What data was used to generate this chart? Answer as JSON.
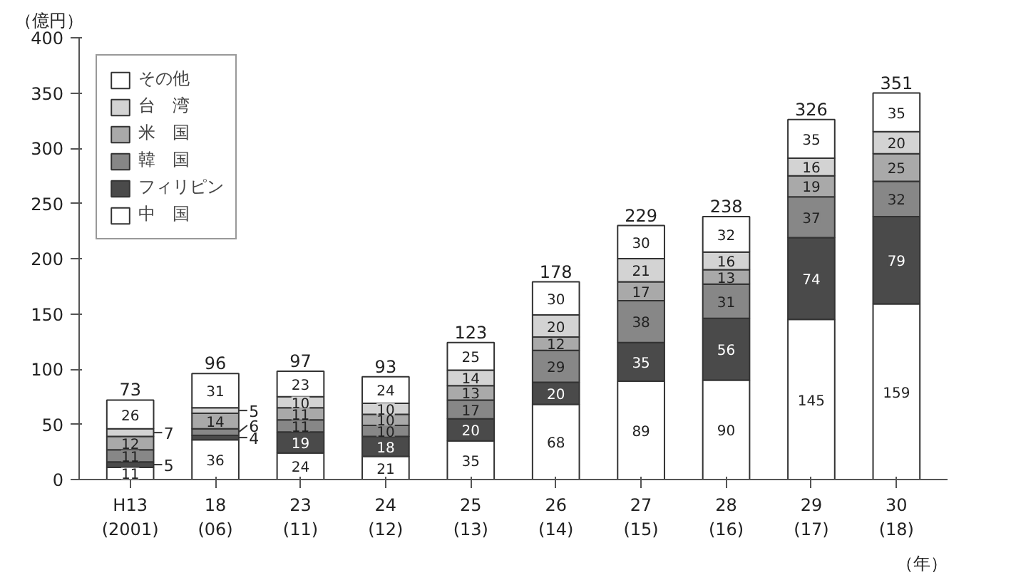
{
  "chart_data": {
    "type": "bar",
    "stacked": true,
    "ylabel": "（億円）",
    "xlabel": "（年）",
    "categories": [
      "H13\n(2001)",
      "18\n(06)",
      "23\n(11)",
      "24\n(12)",
      "25\n(13)",
      "26\n(14)",
      "27\n(15)",
      "28\n(16)",
      "29\n(17)",
      "30\n(18)"
    ],
    "series": [
      {
        "name": "中　国",
        "color": "#ffffff",
        "values": [
          11,
          36,
          24,
          21,
          35,
          68,
          89,
          90,
          145,
          159
        ]
      },
      {
        "name": "フィリピン",
        "color": "#4a4a4a",
        "values": [
          5,
          4,
          19,
          18,
          20,
          20,
          35,
          56,
          74,
          79
        ]
      },
      {
        "name": "韓　国",
        "color": "#878787",
        "values": [
          11,
          6,
          11,
          10,
          17,
          29,
          38,
          31,
          37,
          32
        ]
      },
      {
        "name": "米　国",
        "color": "#a9a9a9",
        "values": [
          12,
          14,
          11,
          10,
          13,
          12,
          17,
          13,
          19,
          25
        ]
      },
      {
        "name": "台　湾",
        "color": "#d3d3d3",
        "values": [
          7,
          5,
          10,
          10,
          14,
          20,
          21,
          16,
          16,
          20
        ]
      },
      {
        "name": "その他",
        "color": "#ffffff",
        "values": [
          26,
          31,
          23,
          24,
          25,
          30,
          30,
          32,
          35,
          35
        ]
      }
    ],
    "totals": [
      "73",
      "96",
      "97",
      "93",
      "123",
      "178",
      "229",
      "238",
      "326",
      "351"
    ],
    "data_labels": true,
    "ylim": [
      0,
      400
    ],
    "yticks": [
      0,
      50,
      100,
      150,
      200,
      250,
      300,
      350,
      400
    ],
    "grid": false,
    "legend": "top left"
  }
}
